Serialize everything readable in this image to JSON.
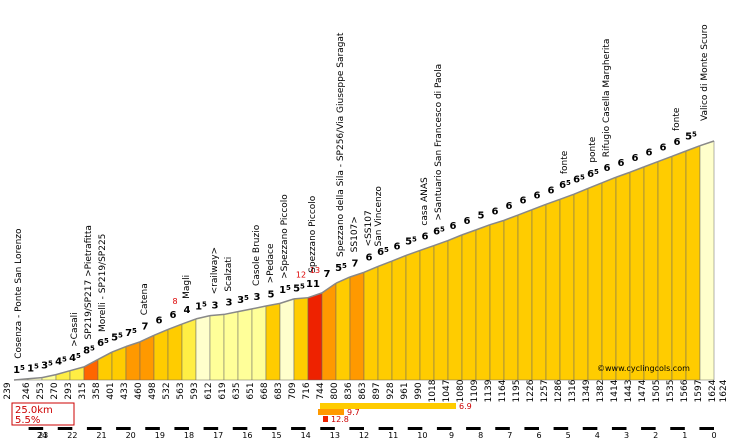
{
  "chart_data": {
    "type": "area",
    "brand": "©www.cyclingcols.com",
    "summary": {
      "distance": "25.0km",
      "average_gradient": "5.5%"
    },
    "start_altitude": 239,
    "end_altitude": 1624,
    "km_marks": [
      "24",
      "23",
      "22",
      "21",
      "20",
      "19",
      "18",
      "17",
      "16",
      "15",
      "14",
      "13",
      "12",
      "11",
      "10",
      "9",
      "8",
      "7",
      "6",
      "5",
      "4",
      "3",
      "2",
      "1",
      "0"
    ],
    "segments": [
      {
        "alt": 246,
        "grad": "1",
        "sup": "5"
      },
      {
        "alt": 253,
        "grad": "1",
        "sup": "5"
      },
      {
        "alt": 270,
        "grad": "3",
        "sup": "5"
      },
      {
        "alt": 293,
        "grad": "4",
        "sup": "5"
      },
      {
        "alt": 315,
        "grad": "4",
        "sup": "5"
      },
      {
        "alt": 358,
        "grad": "8",
        "sup": "5"
      },
      {
        "alt": 401,
        "grad": "6",
        "sup": "5"
      },
      {
        "alt": 433,
        "grad": "5",
        "sup": "5"
      },
      {
        "alt": 460,
        "grad": "7",
        "sup": "5"
      },
      {
        "alt": 498,
        "grad": "7",
        "sup": ""
      },
      {
        "alt": 532,
        "grad": "6",
        "sup": ""
      },
      {
        "alt": 563,
        "grad": "6",
        "sup": ""
      },
      {
        "alt": 593,
        "grad": "4",
        "sup": ""
      },
      {
        "alt": 612,
        "grad": "1",
        "sup": "5"
      },
      {
        "alt": 619,
        "grad": "3",
        "sup": ""
      },
      {
        "alt": 635,
        "grad": "3",
        "sup": ""
      },
      {
        "alt": 651,
        "grad": "3",
        "sup": "5"
      },
      {
        "alt": 668,
        "grad": "3",
        "sup": ""
      },
      {
        "alt": 683,
        "grad": "5",
        "sup": ""
      },
      {
        "alt": 709,
        "grad": "1",
        "sup": "5"
      },
      {
        "alt": 716,
        "grad": "5",
        "sup": "5"
      },
      {
        "alt": 744,
        "grad": "11",
        "sup": ""
      },
      {
        "alt": 800,
        "grad": "7",
        "sup": ""
      },
      {
        "alt": 836,
        "grad": "5",
        "sup": "5"
      },
      {
        "alt": 863,
        "grad": "7",
        "sup": ""
      },
      {
        "alt": 897,
        "grad": "6",
        "sup": ""
      },
      {
        "alt": 928,
        "grad": "6",
        "sup": "5"
      },
      {
        "alt": 961,
        "grad": "6",
        "sup": ""
      },
      {
        "alt": 990,
        "grad": "5",
        "sup": "5"
      },
      {
        "alt": 1018,
        "grad": "6",
        "sup": ""
      },
      {
        "alt": 1047,
        "grad": "6",
        "sup": "5"
      },
      {
        "alt": 1080,
        "grad": "6",
        "sup": ""
      },
      {
        "alt": 1109,
        "grad": "6",
        "sup": ""
      },
      {
        "alt": 1139,
        "grad": "5",
        "sup": ""
      },
      {
        "alt": 1164,
        "grad": "6",
        "sup": ""
      },
      {
        "alt": 1195,
        "grad": "6",
        "sup": ""
      },
      {
        "alt": 1226,
        "grad": "6",
        "sup": ""
      },
      {
        "alt": 1257,
        "grad": "6",
        "sup": ""
      },
      {
        "alt": 1286,
        "grad": "6",
        "sup": ""
      },
      {
        "alt": 1316,
        "grad": "6",
        "sup": "5"
      },
      {
        "alt": 1349,
        "grad": "6",
        "sup": "5"
      },
      {
        "alt": 1382,
        "grad": "6",
        "sup": "5"
      },
      {
        "alt": 1414,
        "grad": "6",
        "sup": ""
      },
      {
        "alt": 1443,
        "grad": "6",
        "sup": ""
      },
      {
        "alt": 1474,
        "grad": "6",
        "sup": ""
      },
      {
        "alt": 1505,
        "grad": "6",
        "sup": ""
      },
      {
        "alt": 1535,
        "grad": "6",
        "sup": ""
      },
      {
        "alt": 1566,
        "grad": "6",
        "sup": ""
      },
      {
        "alt": 1597,
        "grad": "5",
        "sup": "5"
      },
      {
        "alt": 1624,
        "grad": "",
        "sup": ""
      }
    ],
    "max_gradients": [
      {
        "value": "8",
        "segment": 11
      },
      {
        "value": "12",
        "segment": 20
      },
      {
        "value": "13",
        "segment": 21
      }
    ],
    "places": [
      {
        "name": "Cosenza - Ponte San Lorenzo",
        "segment": 0
      },
      {
        "name": ">Casali",
        "segment": 4
      },
      {
        "name": "SP219/SP217 >Pietrafitta",
        "segment": 5
      },
      {
        "name": "Morelli - SP219/SP225",
        "segment": 6
      },
      {
        "name": "Catena",
        "segment": 9
      },
      {
        "name": "Magli",
        "segment": 12
      },
      {
        "name": "<railway>",
        "segment": 14
      },
      {
        "name": "Scalzati",
        "segment": 15
      },
      {
        "name": "Casole Bruzio",
        "segment": 17
      },
      {
        "name": ">Pedace",
        "segment": 18
      },
      {
        "name": ">Spezzano Piccolo",
        "segment": 19
      },
      {
        "name": "Spezzano Piccolo",
        "segment": 21
      },
      {
        "name": "Spezzano della Sila - SP256/Via Giuseppe Saragat",
        "segment": 23
      },
      {
        "name": "SS107>",
        "segment": 24
      },
      {
        "name": "<SS107",
        "segment": 25
      },
      {
        "name": "San Vincenzo",
        "segment": 25
      },
      {
        "name": "casa ANAS",
        "segment": 29
      },
      {
        "name": ">Santuario San Francesco di Paola",
        "segment": 30
      },
      {
        "name": "fonte",
        "segment": 39
      },
      {
        "name": "ponte",
        "segment": 41
      },
      {
        "name": "Rifugio Casella Margherita",
        "segment": 42
      },
      {
        "name": "fonte",
        "segment": 47
      },
      {
        "name": "Valico di Monte Scuro",
        "segment": 49
      }
    ],
    "bottom_bars": [
      {
        "value": "6.9"
      },
      {
        "value": "9.7"
      },
      {
        "value": "12.8"
      }
    ]
  }
}
